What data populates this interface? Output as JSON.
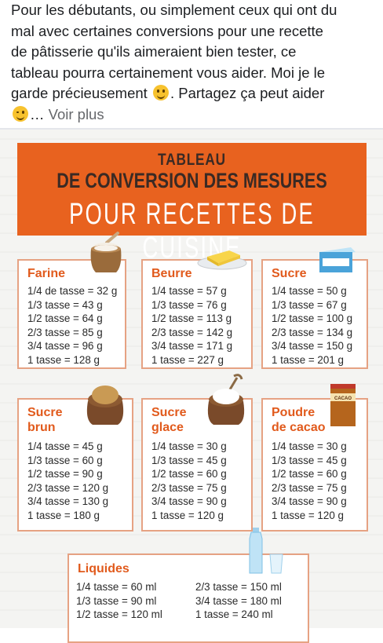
{
  "post": {
    "line1": "Pour les débutants, ou simplement ceux qui ont du",
    "line2": "mal avec certaines conversions pour une recette",
    "line3": "de pâtisserie qu'ils aimeraient bien tester, ce",
    "line4": "tableau pourra certainement vous aider. Moi je le",
    "line5_a": "garde précieusement",
    "line5_b": ". Partagez ça peut aider",
    "line6_a": "… ",
    "see_more": "Voir plus",
    "emoji1": "smiling-face-icon",
    "emoji2": "winking-face-icon"
  },
  "banner": {
    "line1": "TABLEAU",
    "line2": "DE CONVERSION DES MESURES",
    "line3": "POUR RECETTES DE CUISINE"
  },
  "cards": [
    {
      "title": "Farine",
      "rows": [
        "1/4 de tasse = 32 g",
        "1/3  tasse = 43 g",
        "1/2  tasse = 64 g",
        "2/3  tasse = 85 g",
        "3/4  tasse = 96 g",
        "1  tasse = 128 g"
      ]
    },
    {
      "title": "Beurre",
      "rows": [
        "1/4 tasse = 57 g",
        "1/3 tasse = 76 g",
        "1/2  tasse = 113 g",
        "2/3 tasse = 142 g",
        "3/4 tasse = 171 g",
        "1  tasse = 227 g"
      ]
    },
    {
      "title": "Sucre",
      "rows": [
        "1/4 tasse = 50 g",
        "1/3 tasse = 67 g",
        "1/2  tasse = 100 g",
        "2/3  tasse = 134 g",
        "3/4  tasse = 150 g",
        "1  tasse = 201 g"
      ]
    },
    {
      "title1": "Sucre",
      "title2": "brun",
      "rows": [
        "1/4 tasse = 45 g",
        "1/3 tasse = 60 g",
        "1/2  tasse = 90 g",
        "2/3  tasse  = 120 g",
        "3/4 tasse = 130 g",
        "1  tasse  = 180 g"
      ]
    },
    {
      "title1": "Sucre",
      "title2": "glace",
      "rows": [
        "1/4 tasse = 30 g",
        "1/3 tasse = 45 g",
        "1/2  tasse = 60 g",
        "2/3  tasse = 75 g",
        "3/4  tasse = 90 g",
        "1  tasse = 120 g"
      ]
    },
    {
      "title1": "Poudre",
      "title2": "de cacao",
      "rows": [
        "1/4  tasse = 30 g",
        "1/3 tasse  = 45 g",
        "1/2  tasse  = 60 g",
        "2/3  tasse  = 75 g",
        "3/4  tasse  = 90 g",
        "1  tasse = 120 g"
      ]
    }
  ],
  "liquides": {
    "title": "Liquides",
    "col1": [
      "1/4  tasse = 60 ml",
      "1/3  tasse = 90 ml",
      "1/2  tasse = 120 ml"
    ],
    "col2": [
      "2/3  tasse = 150 ml",
      "3/4  tasse = 180 ml",
      "1  tasse = 240 ml"
    ]
  },
  "cacao_box_label": "CACAO",
  "colors": {
    "accent": "#e8621f",
    "title_orange": "#e15a1c",
    "card_border": "#e6a283"
  }
}
